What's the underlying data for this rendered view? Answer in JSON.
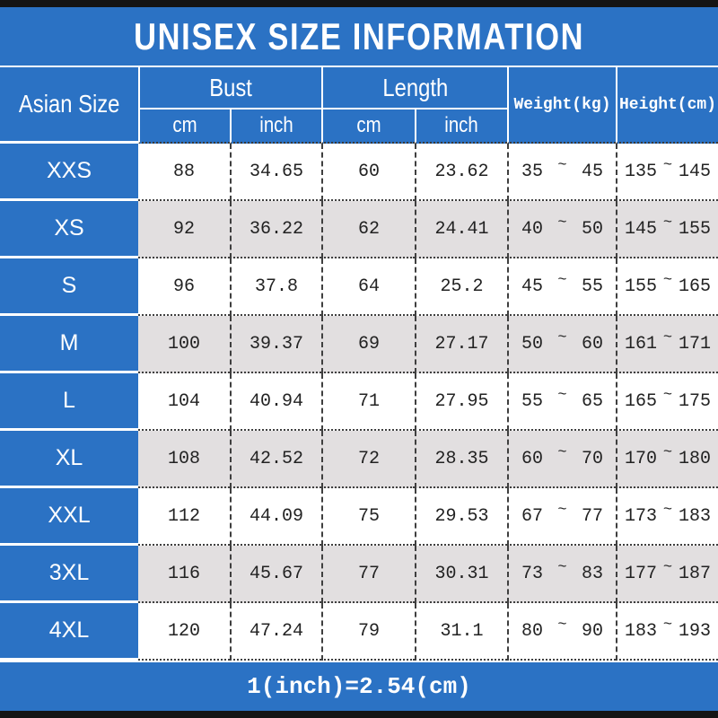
{
  "title": "UNISEX SIZE INFORMATION",
  "header": {
    "size_col": "Asian Size",
    "bust_group": "Bust",
    "length_group": "Length",
    "cm": "cm",
    "inch": "inch",
    "weight": "Weight(kg)",
    "height": "Height(cm)"
  },
  "range_separator": "~",
  "rows": [
    {
      "size": "XXS",
      "bust_cm": "88",
      "bust_inch": "34.65",
      "length_cm": "60",
      "length_inch": "23.62",
      "weight_min": "35",
      "weight_max": "45",
      "height_min": "135",
      "height_max": "145"
    },
    {
      "size": "XS",
      "bust_cm": "92",
      "bust_inch": "36.22",
      "length_cm": "62",
      "length_inch": "24.41",
      "weight_min": "40",
      "weight_max": "50",
      "height_min": "145",
      "height_max": "155"
    },
    {
      "size": "S",
      "bust_cm": "96",
      "bust_inch": "37.8",
      "length_cm": "64",
      "length_inch": "25.2",
      "weight_min": "45",
      "weight_max": "55",
      "height_min": "155",
      "height_max": "165"
    },
    {
      "size": "M",
      "bust_cm": "100",
      "bust_inch": "39.37",
      "length_cm": "69",
      "length_inch": "27.17",
      "weight_min": "50",
      "weight_max": "60",
      "height_min": "161",
      "height_max": "171"
    },
    {
      "size": "L",
      "bust_cm": "104",
      "bust_inch": "40.94",
      "length_cm": "71",
      "length_inch": "27.95",
      "weight_min": "55",
      "weight_max": "65",
      "height_min": "165",
      "height_max": "175"
    },
    {
      "size": "XL",
      "bust_cm": "108",
      "bust_inch": "42.52",
      "length_cm": "72",
      "length_inch": "28.35",
      "weight_min": "60",
      "weight_max": "70",
      "height_min": "170",
      "height_max": "180"
    },
    {
      "size": "XXL",
      "bust_cm": "112",
      "bust_inch": "44.09",
      "length_cm": "75",
      "length_inch": "29.53",
      "weight_min": "67",
      "weight_max": "77",
      "height_min": "173",
      "height_max": "183"
    },
    {
      "size": "3XL",
      "bust_cm": "116",
      "bust_inch": "45.67",
      "length_cm": "77",
      "length_inch": "30.31",
      "weight_min": "73",
      "weight_max": "83",
      "height_min": "177",
      "height_max": "187"
    },
    {
      "size": "4XL",
      "bust_cm": "120",
      "bust_inch": "47.24",
      "length_cm": "79",
      "length_inch": "31.1",
      "weight_min": "80",
      "weight_max": "90",
      "height_min": "183",
      "height_max": "193"
    }
  ],
  "footer_note": "1(inch)=2.54(cm)",
  "colors": {
    "accent_blue": "#2b72c4",
    "row_alt_gray": "#e2dfe0",
    "bar_black": "#141414",
    "text_dark": "#222222",
    "text_white": "#ffffff"
  },
  "chart_data": {
    "type": "table",
    "title": "UNISEX SIZE INFORMATION",
    "columns": [
      "Asian Size",
      "Bust cm",
      "Bust inch",
      "Length cm",
      "Length inch",
      "Weight(kg)",
      "Height(cm)"
    ],
    "rows": [
      [
        "XXS",
        "88",
        "34.65",
        "60",
        "23.62",
        "35 ~ 45",
        "135 ~ 145"
      ],
      [
        "XS",
        "92",
        "36.22",
        "62",
        "24.41",
        "40 ~ 50",
        "145 ~ 155"
      ],
      [
        "S",
        "96",
        "37.8",
        "64",
        "25.2",
        "45 ~ 55",
        "155 ~ 165"
      ],
      [
        "M",
        "100",
        "39.37",
        "69",
        "27.17",
        "50 ~ 60",
        "161 ~ 171"
      ],
      [
        "L",
        "104",
        "40.94",
        "71",
        "27.95",
        "55 ~ 65",
        "165 ~ 175"
      ],
      [
        "XL",
        "108",
        "42.52",
        "72",
        "28.35",
        "60 ~ 70",
        "170 ~ 180"
      ],
      [
        "XXL",
        "112",
        "44.09",
        "75",
        "29.53",
        "67 ~ 77",
        "173 ~ 183"
      ],
      [
        "3XL",
        "116",
        "45.67",
        "77",
        "30.31",
        "73 ~ 83",
        "177 ~ 187"
      ],
      [
        "4XL",
        "120",
        "47.24",
        "79",
        "31.1",
        "80 ~ 90",
        "183 ~ 193"
      ]
    ],
    "footnote": "1(inch)=2.54(cm)",
    "legend_position": "none",
    "grid": true
  }
}
